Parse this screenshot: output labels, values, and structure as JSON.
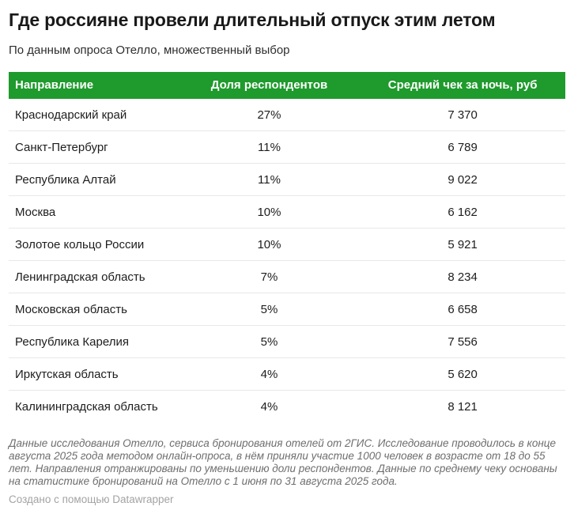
{
  "page": {
    "title": "Где россияне провели длительный отпуск этим летом",
    "subtitle": "По данным опроса Отелло, множественный выбор"
  },
  "table": {
    "header_bg": "#1f9a2c",
    "header_text_color": "#ffffff",
    "columns": {
      "destination": "Направление",
      "share": "Доля респондентов",
      "avg_check": "Средний чек за ночь, руб"
    },
    "rows": [
      {
        "destination": "Краснодарский край",
        "share": "27%",
        "avg_check": "7 370"
      },
      {
        "destination": "Санкт-Петербург",
        "share": "11%",
        "avg_check": "6 789"
      },
      {
        "destination": "Республика Алтай",
        "share": "11%",
        "avg_check": "9 022"
      },
      {
        "destination": "Москва",
        "share": "10%",
        "avg_check": "6 162"
      },
      {
        "destination": "Золотое кольцо России",
        "share": "10%",
        "avg_check": "5 921"
      },
      {
        "destination": "Ленинградская область",
        "share": "7%",
        "avg_check": "8 234"
      },
      {
        "destination": "Московская область",
        "share": "5%",
        "avg_check": "6 658"
      },
      {
        "destination": "Республика Карелия",
        "share": "5%",
        "avg_check": "7 556"
      },
      {
        "destination": "Иркутская область",
        "share": "4%",
        "avg_check": "5 620"
      },
      {
        "destination": "Калининградская область",
        "share": "4%",
        "avg_check": "8 121"
      }
    ]
  },
  "chart_data": {
    "type": "table",
    "title": "Где россияне провели длительный отпуск этим летом",
    "subtitle": "По данным опроса Отелло, множественный выбор",
    "columns": [
      "Направление",
      "Доля респондентов",
      "Средний чек за ночь, руб"
    ],
    "categories": [
      "Краснодарский край",
      "Санкт-Петербург",
      "Республика Алтай",
      "Москва",
      "Золотое кольцо России",
      "Ленинградская область",
      "Московская область",
      "Республика Карелия",
      "Иркутская область",
      "Калининградская область"
    ],
    "series": [
      {
        "name": "Доля респондентов, %",
        "values": [
          27,
          11,
          11,
          10,
          10,
          7,
          5,
          5,
          4,
          4
        ]
      },
      {
        "name": "Средний чек за ночь, руб",
        "values": [
          7370,
          6789,
          9022,
          6162,
          5921,
          8234,
          6658,
          7556,
          5620,
          8121
        ]
      }
    ],
    "layout_hints": {
      "header_background": "#1f9a2c",
      "row_divider": "#e8e8e8",
      "sorted_by": "Доля респондентов (убывание)"
    }
  },
  "footer": {
    "notes": "Данные исследования Отелло, сервиса бронирования отелей от 2ГИС. Исследование проводилось в конце августа 2025 года методом онлайн-опроса, в нём приняли участие 1000 человек в возрасте от 18 до 55 лет. Направления отранжированы по уменьшению доли респондентов. Данные по среднему чеку основаны на статистике бронирований на Отелло с 1 июня по 31 августа 2025 года.",
    "attribution": "Создано с помощью Datawrapper"
  }
}
